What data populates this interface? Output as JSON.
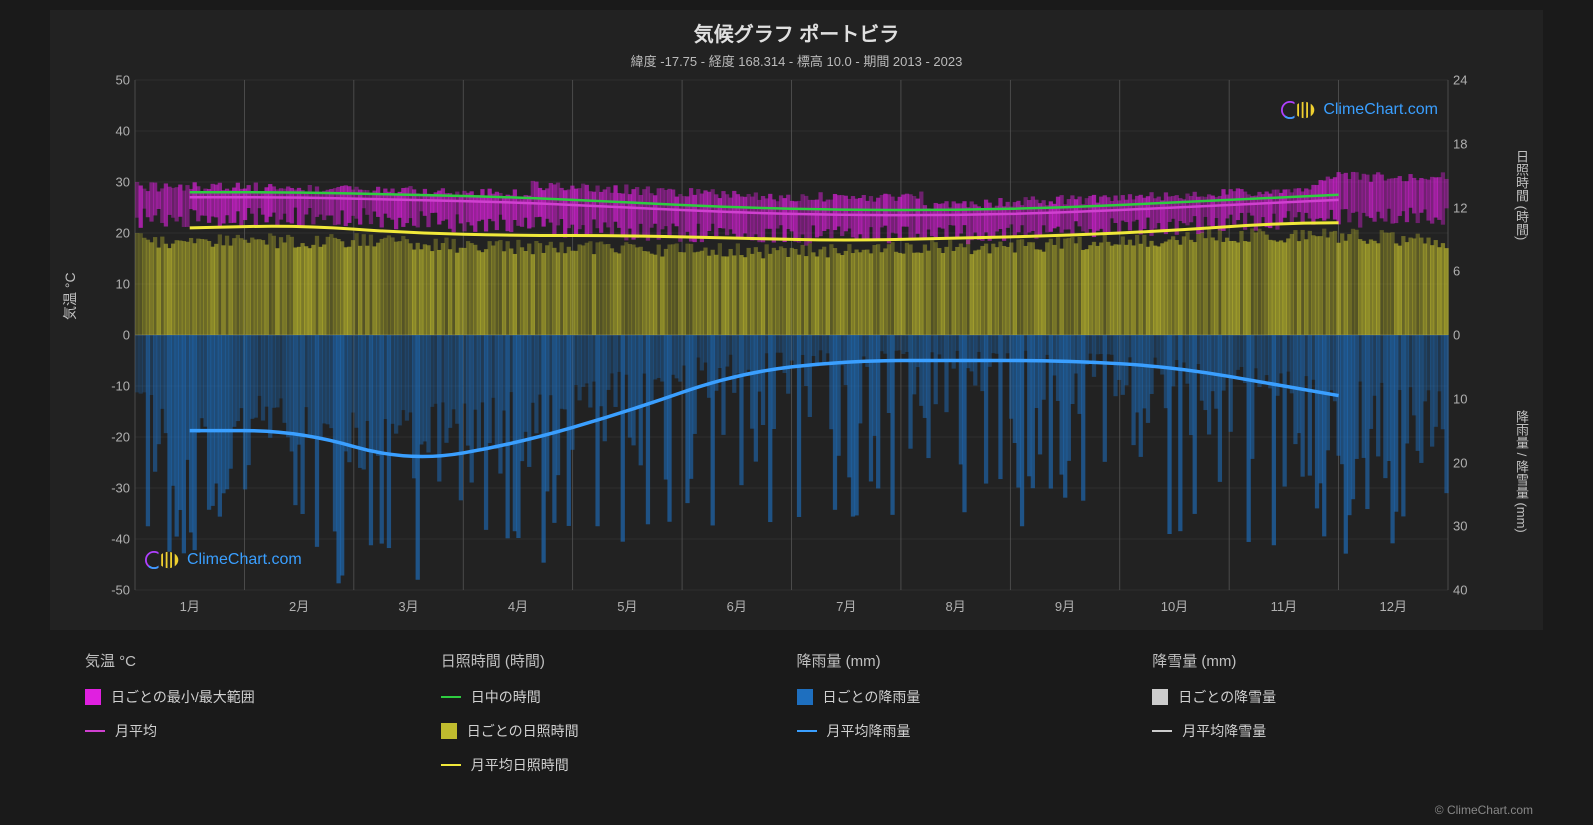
{
  "title": "気候グラフ ポートビラ",
  "subtitle": "緯度 -17.75 - 経度 168.314 - 標高 10.0 - 期間 2013 - 2023",
  "watermark_text": "ClimeChart.com",
  "credit_text": "© ClimeChart.com",
  "axis_labels": {
    "left": "気温 °C",
    "right_top": "日照時間 (時間)",
    "right_bottom": "降雨量 / 降雪量 (mm)"
  },
  "background_color": "#1a1a1a",
  "plot_background": "#222222",
  "grid_color": "#555555",
  "text_color": "#d0d0d0",
  "temp_axis": {
    "min": -50,
    "max": 50,
    "ticks": [
      -50,
      -40,
      -30,
      -20,
      -10,
      0,
      10,
      20,
      30,
      40,
      50
    ]
  },
  "sun_axis": {
    "min": 0,
    "max": 24,
    "ticks": [
      0,
      6,
      12,
      18,
      24
    ]
  },
  "rain_axis": {
    "min": 0,
    "max": 40,
    "ticks": [
      0,
      10,
      20,
      30,
      40
    ]
  },
  "months": [
    "1月",
    "2月",
    "3月",
    "4月",
    "5月",
    "6月",
    "7月",
    "8月",
    "9月",
    "10月",
    "11月",
    "12月"
  ],
  "series": {
    "temp_range": {
      "color": "#e020e0",
      "opacity": 0.5,
      "low": [
        24,
        24,
        24,
        23,
        22,
        21,
        20.5,
        20.5,
        21,
        22,
        23,
        24
      ],
      "high": [
        31,
        31,
        30.5,
        30,
        29,
        28,
        27,
        27,
        28,
        29,
        30,
        31
      ]
    },
    "temp_max_line": {
      "color": "#2ecc40",
      "values": [
        28,
        28,
        27.5,
        27,
        26,
        25,
        24.5,
        24.5,
        25,
        26,
        27,
        28
      ]
    },
    "temp_avg_line": {
      "color": "#d040d0",
      "values": [
        27,
        27,
        26.5,
        26,
        25,
        24,
        23.5,
        23.5,
        24,
        25,
        26,
        27
      ]
    },
    "daylight_fill": {
      "color": "#c0bc2e",
      "opacity": 0.45,
      "values": [
        20,
        20,
        20,
        19,
        18.5,
        18,
        18,
        18.5,
        19,
        20,
        21,
        21
      ]
    },
    "sunshine_line": {
      "color": "#f0e83a",
      "values": [
        21,
        21.5,
        20,
        19.5,
        19.5,
        19,
        18.5,
        19,
        19.5,
        20.5,
        22,
        22
      ]
    },
    "rain_fill": {
      "color": "#1e6fbf",
      "opacity": 0.45,
      "values": [
        40,
        40,
        40,
        40,
        35,
        30,
        28,
        28,
        30,
        35,
        40,
        40
      ]
    },
    "rain_line": {
      "color": "#3a9fff",
      "values": [
        15,
        15,
        20,
        17,
        12,
        6,
        4,
        4,
        4,
        5,
        8,
        11
      ]
    }
  },
  "legend": {
    "columns": [
      {
        "header": "気温 °C",
        "items": [
          {
            "type": "swatch",
            "color": "#e020e0",
            "label": "日ごとの最小/最大範囲"
          },
          {
            "type": "line",
            "color": "#d040d0",
            "label": "月平均"
          }
        ]
      },
      {
        "header": "日照時間 (時間)",
        "items": [
          {
            "type": "line",
            "color": "#2ecc40",
            "label": "日中の時間"
          },
          {
            "type": "swatch",
            "color": "#c0bc2e",
            "label": "日ごとの日照時間"
          },
          {
            "type": "line",
            "color": "#f0e83a",
            "label": "月平均日照時間"
          }
        ]
      },
      {
        "header": "降雨量 (mm)",
        "items": [
          {
            "type": "swatch",
            "color": "#1e6fbf",
            "label": "日ごとの降雨量"
          },
          {
            "type": "line",
            "color": "#3a9fff",
            "label": "月平均降雨量"
          }
        ]
      },
      {
        "header": "降雪量 (mm)",
        "items": [
          {
            "type": "swatch",
            "color": "#cccccc",
            "label": "日ごとの降雪量"
          },
          {
            "type": "line",
            "color": "#cccccc",
            "label": "月平均降雪量"
          }
        ]
      }
    ]
  }
}
